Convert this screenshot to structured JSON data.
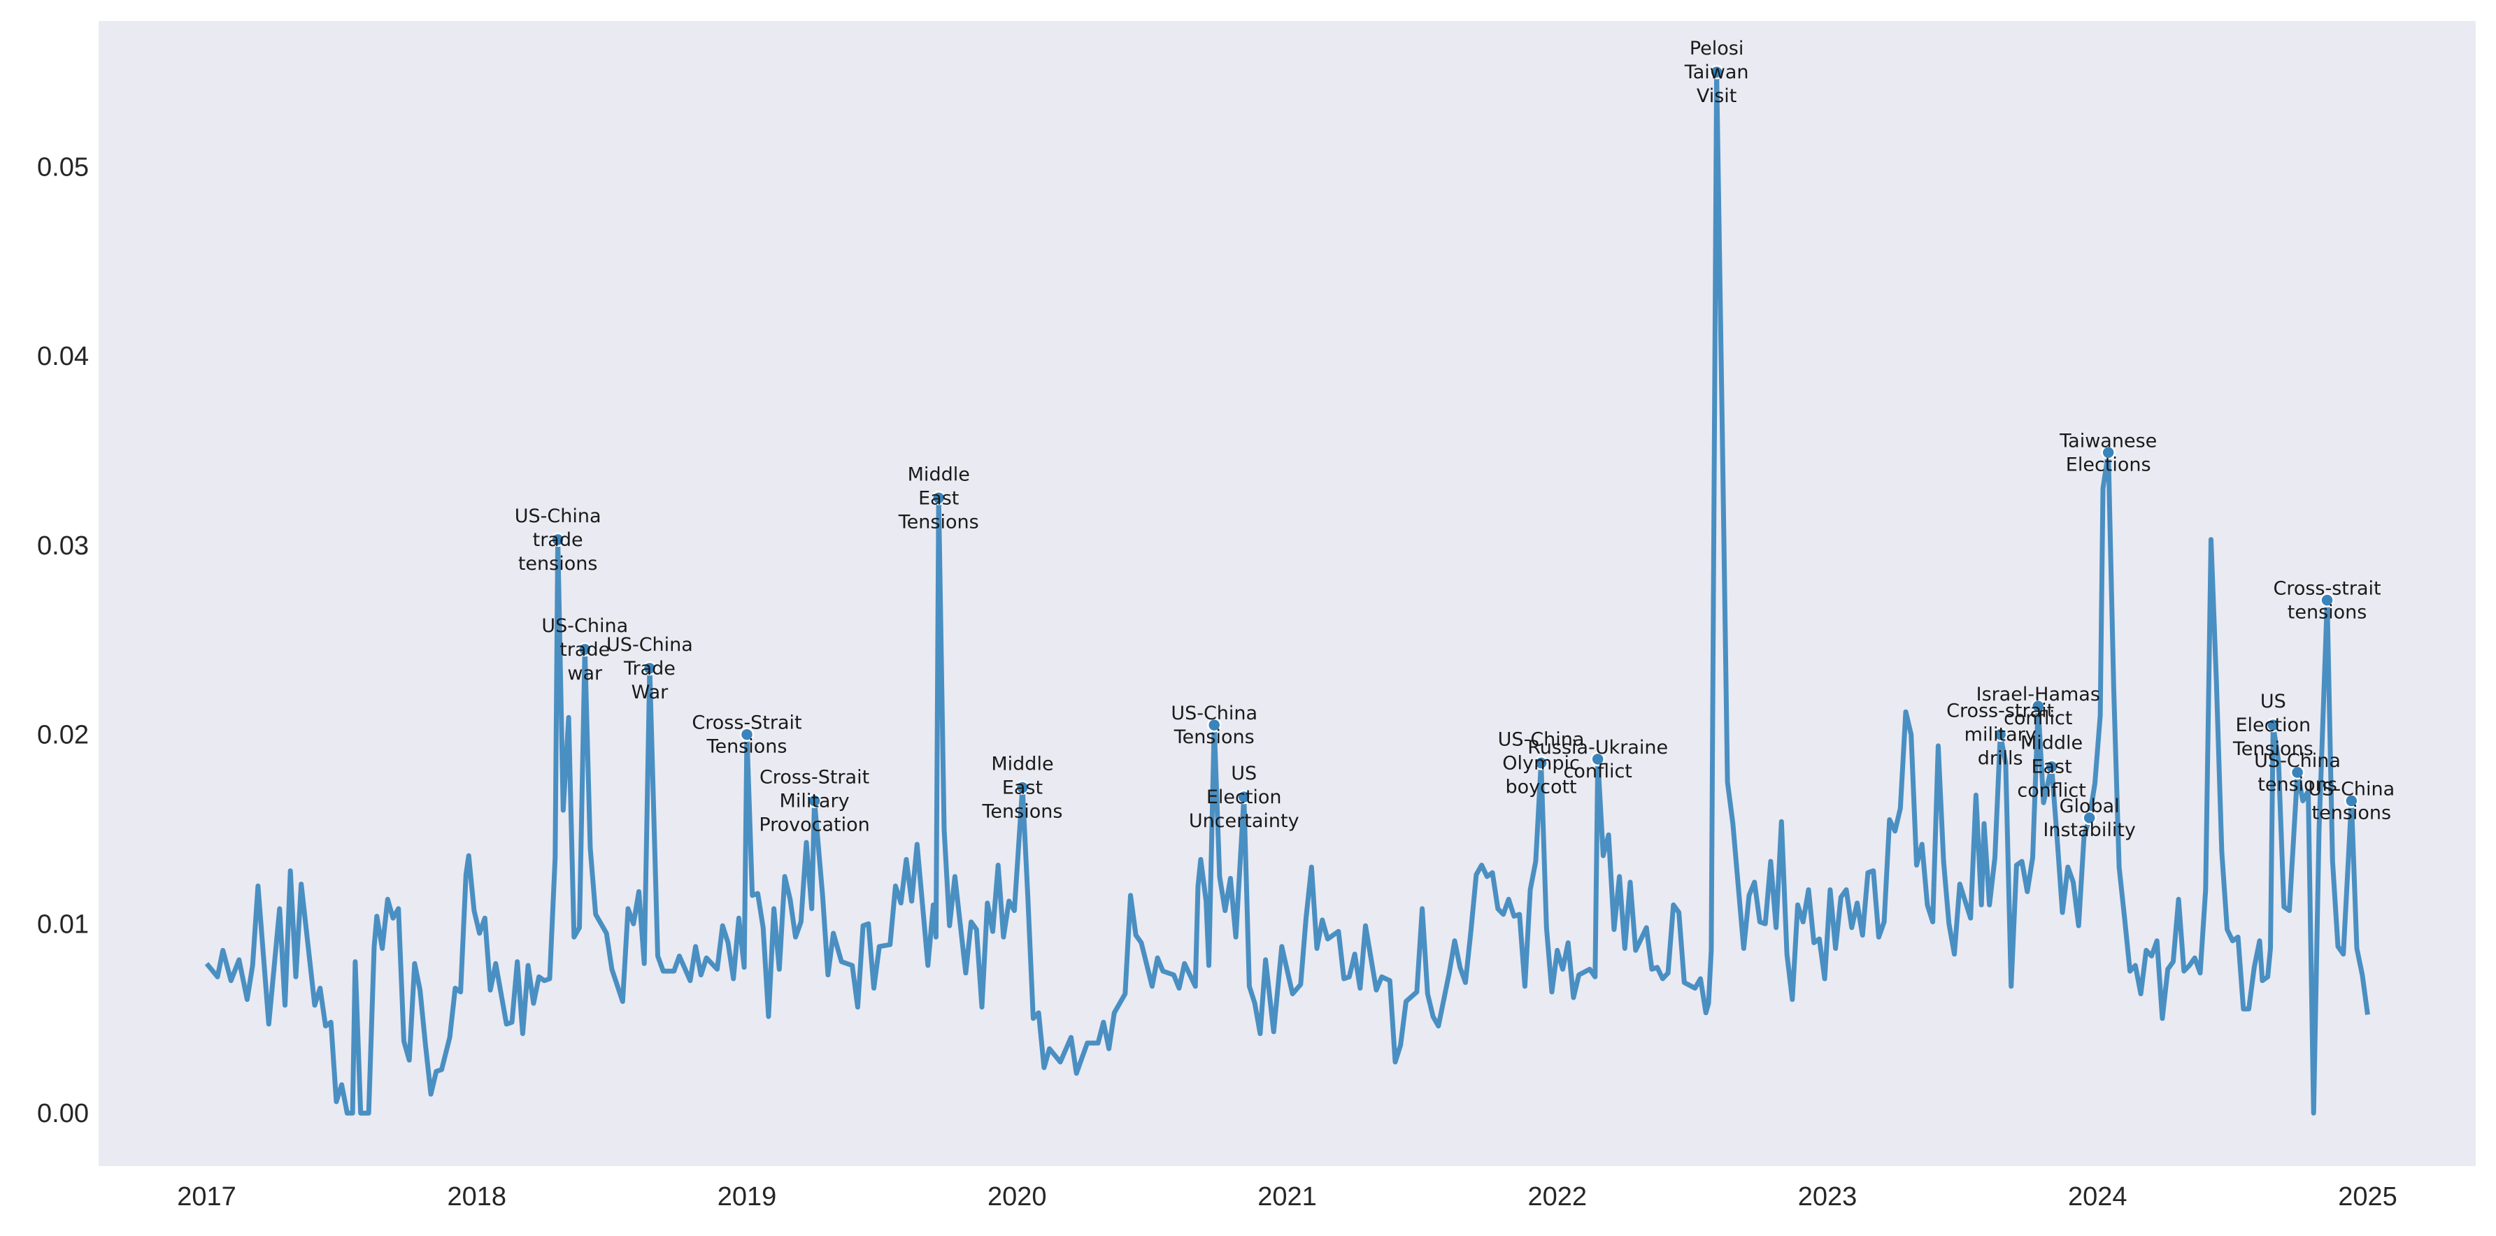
{
  "chart_data": {
    "type": "line",
    "xlim": [
      2016.6,
      2025.4
    ],
    "ylim": [
      -0.0028,
      0.0577
    ],
    "xticks": [
      2017,
      2018,
      2019,
      2020,
      2021,
      2022,
      2023,
      2024,
      2025
    ],
    "yticks": [
      {
        "value": 0,
        "label": "0.00"
      },
      0.01,
      0.02,
      0.03,
      0.04,
      0.05
    ],
    "grid": true,
    "series": [
      {
        "color": "#4a8fc2",
        "x": [
          2017.0,
          2017.04,
          2017.06,
          2017.09,
          2017.12,
          2017.15,
          2017.17,
          2017.19,
          2017.23,
          2017.27,
          2017.29,
          2017.31,
          2017.33,
          2017.35,
          2017.4,
          2017.42,
          2017.44,
          2017.46,
          2017.48,
          2017.5,
          2017.52,
          2017.54,
          2017.55,
          2017.57,
          2017.6,
          2017.62,
          2017.63,
          2017.65,
          2017.67,
          2017.69,
          2017.71,
          2017.73,
          2017.75,
          2017.77,
          2017.79,
          2017.81,
          2017.83,
          2017.85,
          2017.87,
          2017.9,
          2017.92,
          2017.94,
          2017.96,
          2017.97,
          2017.99,
          2018.01,
          2018.03,
          2018.05,
          2018.07,
          2018.11,
          2018.13,
          2018.15,
          2018.17,
          2018.19,
          2018.21,
          2018.23,
          2018.25,
          2018.27,
          2018.29,
          2018.3,
          2018.32,
          2018.34,
          2018.36,
          2018.38,
          2018.4,
          2018.42,
          2018.44,
          2018.48,
          2018.5,
          2018.54,
          2018.56,
          2018.58,
          2018.6,
          2018.62,
          2018.64,
          2018.67,
          2018.69,
          2018.73,
          2018.75,
          2018.79,
          2018.81,
          2018.83,
          2018.85,
          2018.89,
          2018.91,
          2018.93,
          2018.95,
          2018.97,
          2018.99,
          2019.0,
          2019.02,
          2019.04,
          2019.06,
          2019.08,
          2019.1,
          2019.12,
          2019.14,
          2019.16,
          2019.18,
          2019.2,
          2019.22,
          2019.24,
          2019.25,
          2019.28,
          2019.3,
          2019.32,
          2019.35,
          2019.39,
          2019.41,
          2019.43,
          2019.45,
          2019.47,
          2019.49,
          2019.53,
          2019.55,
          2019.57,
          2019.59,
          2019.61,
          2019.63,
          2019.65,
          2019.67,
          2019.69,
          2019.7,
          2019.71,
          2019.73,
          2019.75,
          2019.77,
          2019.81,
          2019.83,
          2019.85,
          2019.87,
          2019.89,
          2019.91,
          2019.93,
          2019.95,
          2019.97,
          2019.99,
          2020.02,
          2020.04,
          2020.06,
          2020.08,
          2020.1,
          2020.12,
          2020.16,
          2020.2,
          2020.22,
          2020.26,
          2020.3,
          2020.32,
          2020.34,
          2020.36,
          2020.4,
          2020.42,
          2020.44,
          2020.46,
          2020.5,
          2020.52,
          2020.54,
          2020.58,
          2020.6,
          2020.62,
          2020.66,
          2020.67,
          2020.68,
          2020.7,
          2020.71,
          2020.73,
          2020.75,
          2020.77,
          2020.79,
          2020.81,
          2020.84,
          2020.86,
          2020.88,
          2020.9,
          2020.92,
          2020.95,
          2020.98,
          2021.02,
          2021.05,
          2021.07,
          2021.09,
          2021.11,
          2021.13,
          2021.15,
          2021.19,
          2021.21,
          2021.23,
          2021.25,
          2021.27,
          2021.29,
          2021.33,
          2021.35,
          2021.38,
          2021.4,
          2021.42,
          2021.44,
          2021.48,
          2021.5,
          2021.52,
          2021.54,
          2021.56,
          2021.6,
          2021.62,
          2021.64,
          2021.66,
          2021.68,
          2021.7,
          2021.72,
          2021.74,
          2021.76,
          2021.78,
          2021.8,
          2021.82,
          2021.84,
          2021.86,
          2021.88,
          2021.9,
          2021.92,
          2021.94,
          2021.96,
          2021.98,
          2022.0,
          2022.02,
          2022.04,
          2022.06,
          2022.08,
          2022.12,
          2022.14,
          2022.15,
          2022.17,
          2022.19,
          2022.21,
          2022.23,
          2022.25,
          2022.27,
          2022.29,
          2022.33,
          2022.35,
          2022.37,
          2022.39,
          2022.41,
          2022.43,
          2022.45,
          2022.47,
          2022.51,
          2022.53,
          2022.55,
          2022.56,
          2022.57,
          2022.59,
          2022.61,
          2022.63,
          2022.65,
          2022.67,
          2022.69,
          2022.71,
          2022.73,
          2022.75,
          2022.77,
          2022.79,
          2022.81,
          2022.83,
          2022.85,
          2022.87,
          2022.89,
          2022.91,
          2022.93,
          2022.95,
          2022.97,
          2022.99,
          2023.01,
          2023.03,
          2023.05,
          2023.07,
          2023.09,
          2023.11,
          2023.13,
          2023.15,
          2023.17,
          2023.19,
          2023.21,
          2023.23,
          2023.25,
          2023.27,
          2023.29,
          2023.31,
          2023.33,
          2023.35,
          2023.37,
          2023.39,
          2023.41,
          2023.43,
          2023.45,
          2023.47,
          2023.49,
          2023.51,
          2023.53,
          2023.55,
          2023.57,
          2023.58,
          2023.6,
          2023.62,
          2023.64,
          2023.66,
          2023.68,
          2023.7,
          2023.72,
          2023.74,
          2023.76,
          2023.78,
          2023.8,
          2023.83,
          2023.85,
          2023.87,
          2023.89,
          2023.91,
          2023.93,
          2023.95,
          2023.97,
          2023.99,
          2024.01,
          2024.02,
          2024.04,
          2024.06,
          2024.08,
          2024.1,
          2024.12,
          2024.14,
          2024.16,
          2024.18,
          2024.2,
          2024.22,
          2024.24,
          2024.26,
          2024.28,
          2024.3,
          2024.32,
          2024.34,
          2024.36,
          2024.38,
          2024.4,
          2024.42,
          2024.44,
          2024.46,
          2024.48,
          2024.5,
          2024.52,
          2024.54,
          2024.56,
          2024.58,
          2024.6,
          2024.61,
          2024.63,
          2024.64,
          2024.65,
          2024.67,
          2024.69,
          2024.71,
          2024.74,
          2024.76,
          2024.78,
          2024.8,
          2024.82,
          2024.85,
          2024.87,
          2024.89,
          2024.91,
          2024.94,
          2024.96,
          2024.98,
          2025.0
        ],
        "values": [
          0.0079,
          0.0072,
          0.0086,
          0.007,
          0.0081,
          0.006,
          0.0078,
          0.012,
          0.0047,
          0.0108,
          0.0057,
          0.0128,
          0.0072,
          0.0121,
          0.0057,
          0.0066,
          0.0046,
          0.0048,
          0.0006,
          0.0015,
          0.0,
          0.0,
          0.008,
          0.0,
          0.0,
          0.0088,
          0.0104,
          0.0087,
          0.0113,
          0.0103,
          0.0108,
          0.0038,
          0.0028,
          0.0079,
          0.0065,
          0.0036,
          0.001,
          0.0022,
          0.0023,
          0.004,
          0.0066,
          0.0064,
          0.0126,
          0.0136,
          0.0107,
          0.0095,
          0.0103,
          0.0065,
          0.0079,
          0.0047,
          0.0048,
          0.008,
          0.0042,
          0.0078,
          0.0058,
          0.0072,
          0.007,
          0.0071,
          0.0135,
          0.0303,
          0.016,
          0.0209,
          0.0093,
          0.0098,
          0.0245,
          0.014,
          0.0105,
          0.0095,
          0.0076,
          0.0059,
          0.0108,
          0.01,
          0.0117,
          0.0079,
          0.0235,
          0.0083,
          0.0075,
          0.0075,
          0.0083,
          0.007,
          0.0088,
          0.0073,
          0.0082,
          0.0076,
          0.0099,
          0.009,
          0.0071,
          0.0103,
          0.0077,
          0.02,
          0.0115,
          0.0116,
          0.0098,
          0.0051,
          0.0108,
          0.0076,
          0.0125,
          0.0113,
          0.0093,
          0.0101,
          0.0143,
          0.0108,
          0.0165,
          0.0115,
          0.0073,
          0.0095,
          0.008,
          0.0078,
          0.0056,
          0.0099,
          0.01,
          0.0066,
          0.0088,
          0.0089,
          0.012,
          0.0111,
          0.0134,
          0.0112,
          0.0142,
          0.011,
          0.0078,
          0.011,
          0.0093,
          0.0325,
          0.015,
          0.0099,
          0.0125,
          0.0074,
          0.0101,
          0.0097,
          0.0056,
          0.0111,
          0.0096,
          0.0131,
          0.0093,
          0.0112,
          0.0107,
          0.0172,
          0.0114,
          0.005,
          0.0053,
          0.0024,
          0.0034,
          0.0027,
          0.004,
          0.0021,
          0.0037,
          0.0037,
          0.0048,
          0.0034,
          0.0053,
          0.0063,
          0.0115,
          0.0094,
          0.009,
          0.0067,
          0.0082,
          0.0075,
          0.0073,
          0.0066,
          0.0079,
          0.0067,
          0.012,
          0.0134,
          0.0112,
          0.0078,
          0.0205,
          0.0125,
          0.0107,
          0.0124,
          0.0093,
          0.0167,
          0.0067,
          0.0058,
          0.0042,
          0.0081,
          0.0043,
          0.0088,
          0.0063,
          0.0068,
          0.0103,
          0.013,
          0.0087,
          0.0102,
          0.0092,
          0.0096,
          0.0071,
          0.0072,
          0.0084,
          0.0066,
          0.0099,
          0.0065,
          0.0072,
          0.007,
          0.0027,
          0.0036,
          0.0059,
          0.0064,
          0.0108,
          0.0063,
          0.0051,
          0.0046,
          0.0074,
          0.0091,
          0.0077,
          0.0069,
          0.0096,
          0.0126,
          0.0131,
          0.0125,
          0.0127,
          0.0108,
          0.0105,
          0.0113,
          0.0104,
          0.0105,
          0.0067,
          0.0118,
          0.0133,
          0.0185,
          0.0098,
          0.0064,
          0.0086,
          0.0076,
          0.009,
          0.0061,
          0.0073,
          0.0076,
          0.0072,
          0.0187,
          0.0136,
          0.0147,
          0.0097,
          0.0125,
          0.0087,
          0.0122,
          0.0086,
          0.0098,
          0.0076,
          0.0077,
          0.0071,
          0.0074,
          0.011,
          0.0106,
          0.0069,
          0.0066,
          0.0071,
          0.0053,
          0.0058,
          0.0086,
          0.055,
          0.0367,
          0.0175,
          0.0153,
          0.012,
          0.0087,
          0.0115,
          0.0122,
          0.0101,
          0.01,
          0.0133,
          0.0098,
          0.0154,
          0.0084,
          0.006,
          0.011,
          0.0101,
          0.0118,
          0.009,
          0.0092,
          0.0071,
          0.0118,
          0.0087,
          0.0114,
          0.0118,
          0.0098,
          0.0111,
          0.0094,
          0.0127,
          0.0128,
          0.0093,
          0.0101,
          0.0155,
          0.0149,
          0.0161,
          0.0212,
          0.02,
          0.0131,
          0.0142,
          0.011,
          0.0101,
          0.0194,
          0.0133,
          0.01,
          0.0084,
          0.0121,
          0.0112,
          0.0103,
          0.0168,
          0.011,
          0.0153,
          0.011,
          0.0135,
          0.02,
          0.0185,
          0.0067,
          0.0131,
          0.0133,
          0.0117,
          0.0135,
          0.0215,
          0.0164,
          0.0183,
          0.0146,
          0.0106,
          0.013,
          0.0122,
          0.0099,
          0.0146,
          0.0156,
          0.0174,
          0.021,
          0.033,
          0.0349,
          0.0224,
          0.013,
          0.0103,
          0.0075,
          0.0078,
          0.0063,
          0.0086,
          0.0083,
          0.0091,
          0.005,
          0.0076,
          0.008,
          0.0113,
          0.0075,
          0.0078,
          0.0082,
          0.0074,
          0.0118,
          0.0303,
          0.0228,
          0.0138,
          0.0097,
          0.0091,
          0.0093,
          0.0055,
          0.0055,
          0.0077,
          0.0091,
          0.007,
          0.0072,
          0.0087,
          0.0205,
          0.0186,
          0.0109,
          0.0107,
          0.018,
          0.0165,
          0.017,
          0.0,
          0.015,
          0.0271,
          0.0133,
          0.0088,
          0.0084,
          0.0165,
          0.0087,
          0.0073,
          0.0052
        ]
      }
    ],
    "marker_color": "#3a84bd",
    "annotations": [
      {
        "lines": [
          "US-China",
          "trade",
          "tensions"
        ],
        "x": 2018.3,
        "y": 0.0303
      },
      {
        "lines": [
          "US-China",
          "trade",
          "war"
        ],
        "x": 2018.4,
        "y": 0.0245
      },
      {
        "lines": [
          "US-China",
          "Trade",
          "War"
        ],
        "x": 2018.64,
        "y": 0.0235
      },
      {
        "lines": [
          "Cross-Strait",
          "Tensions"
        ],
        "x": 2019.0,
        "y": 0.02
      },
      {
        "lines": [
          "Cross-Strait",
          "Military",
          "Provocation"
        ],
        "x": 2019.25,
        "y": 0.0165
      },
      {
        "lines": [
          "Middle",
          "East",
          "Tensions"
        ],
        "x": 2019.71,
        "y": 0.0325
      },
      {
        "lines": [
          "Middle",
          "East",
          "Tensions"
        ],
        "x": 2020.02,
        "y": 0.0172
      },
      {
        "lines": [
          "US-China",
          "Tensions"
        ],
        "x": 2020.73,
        "y": 0.0205
      },
      {
        "lines": [
          "US",
          "Election",
          "Uncertainty"
        ],
        "x": 2020.84,
        "y": 0.0167
      },
      {
        "lines": [
          "US-China",
          "Olympic",
          "boycott"
        ],
        "x": 2021.94,
        "y": 0.0185
      },
      {
        "lines": [
          "Russia-Ukraine",
          "conflict"
        ],
        "x": 2022.15,
        "y": 0.0187
      },
      {
        "lines": [
          "Pelosi",
          "Taiwan",
          "Visit"
        ],
        "x": 2022.59,
        "y": 0.055
      },
      {
        "lines": [
          "Cross-strait",
          "military",
          "drills"
        ],
        "x": 2023.64,
        "y": 0.02
      },
      {
        "lines": [
          "Israel-Hamas",
          "conflict"
        ],
        "x": 2023.78,
        "y": 0.0215
      },
      {
        "lines": [
          "Middle",
          "East",
          "conflict"
        ],
        "x": 2023.83,
        "y": 0.0183
      },
      {
        "lines": [
          "Global",
          "Instability"
        ],
        "x": 2023.97,
        "y": 0.0156
      },
      {
        "lines": [
          "Taiwanese",
          "Elections"
        ],
        "x": 2024.04,
        "y": 0.0349
      },
      {
        "lines": [
          "US",
          "Election",
          "Tensions"
        ],
        "x": 2024.65,
        "y": 0.0205
      },
      {
        "lines": [
          "US-China",
          "tensions"
        ],
        "x": 2024.74,
        "y": 0.018
      },
      {
        "lines": [
          "Cross-strait",
          "tensions"
        ],
        "x": 2024.85,
        "y": 0.0271
      },
      {
        "lines": [
          "US-China",
          "tensions"
        ],
        "x": 2024.94,
        "y": 0.0165
      }
    ]
  }
}
